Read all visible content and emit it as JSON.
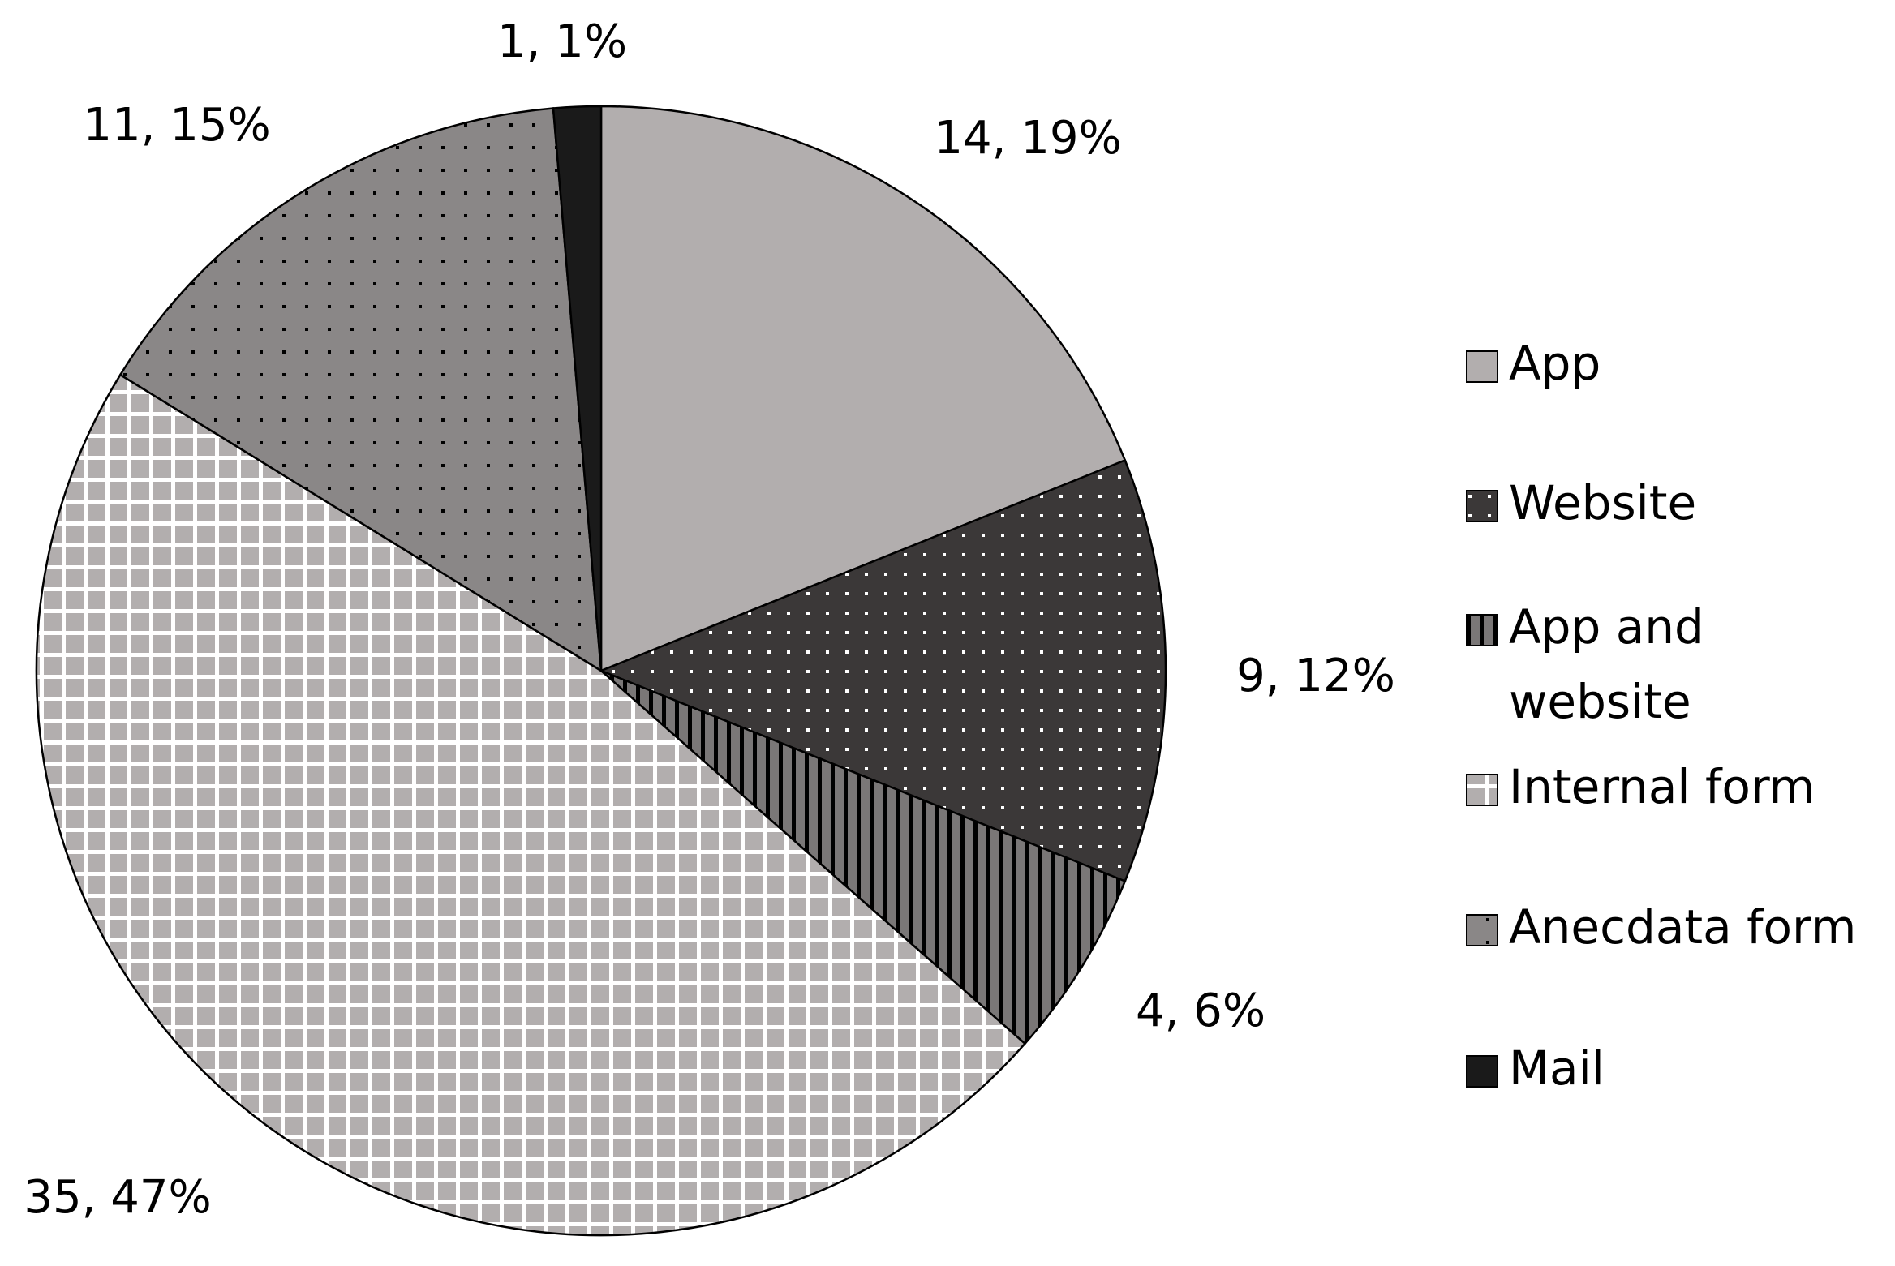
{
  "chart_data": {
    "type": "pie",
    "title": "",
    "slices": [
      {
        "name": "App",
        "value": 14,
        "percent": "19%",
        "label": "14, 19%",
        "pattern": "solid-light",
        "color": "#b2aeae"
      },
      {
        "name": "Website",
        "value": 9,
        "percent": "12%",
        "label": "9, 12%",
        "pattern": "dots-white-on-dark",
        "color": "#3b3838"
      },
      {
        "name": "App and website",
        "legend_lines": [
          "App and",
          "website"
        ],
        "value": 4,
        "percent": "6%",
        "label": "4, 6%",
        "pattern": "vertical-stripes",
        "color": "#7a7777"
      },
      {
        "name": "Internal form",
        "value": 35,
        "percent": "47%",
        "label": "35, 47%",
        "pattern": "white-grid",
        "color": "#b2aeae"
      },
      {
        "name": "Anecdata form",
        "value": 11,
        "percent": "15%",
        "label": "11, 15%",
        "pattern": "dots-black-on-mid",
        "color": "#8a8787"
      },
      {
        "name": "Mail",
        "value": 1,
        "percent": "1%",
        "label": "1, 1%",
        "pattern": "solid-black",
        "color": "#1a1a1a"
      }
    ],
    "legend": {
      "placement": "right"
    },
    "start_angle_deg": 0,
    "direction": "clockwise"
  }
}
